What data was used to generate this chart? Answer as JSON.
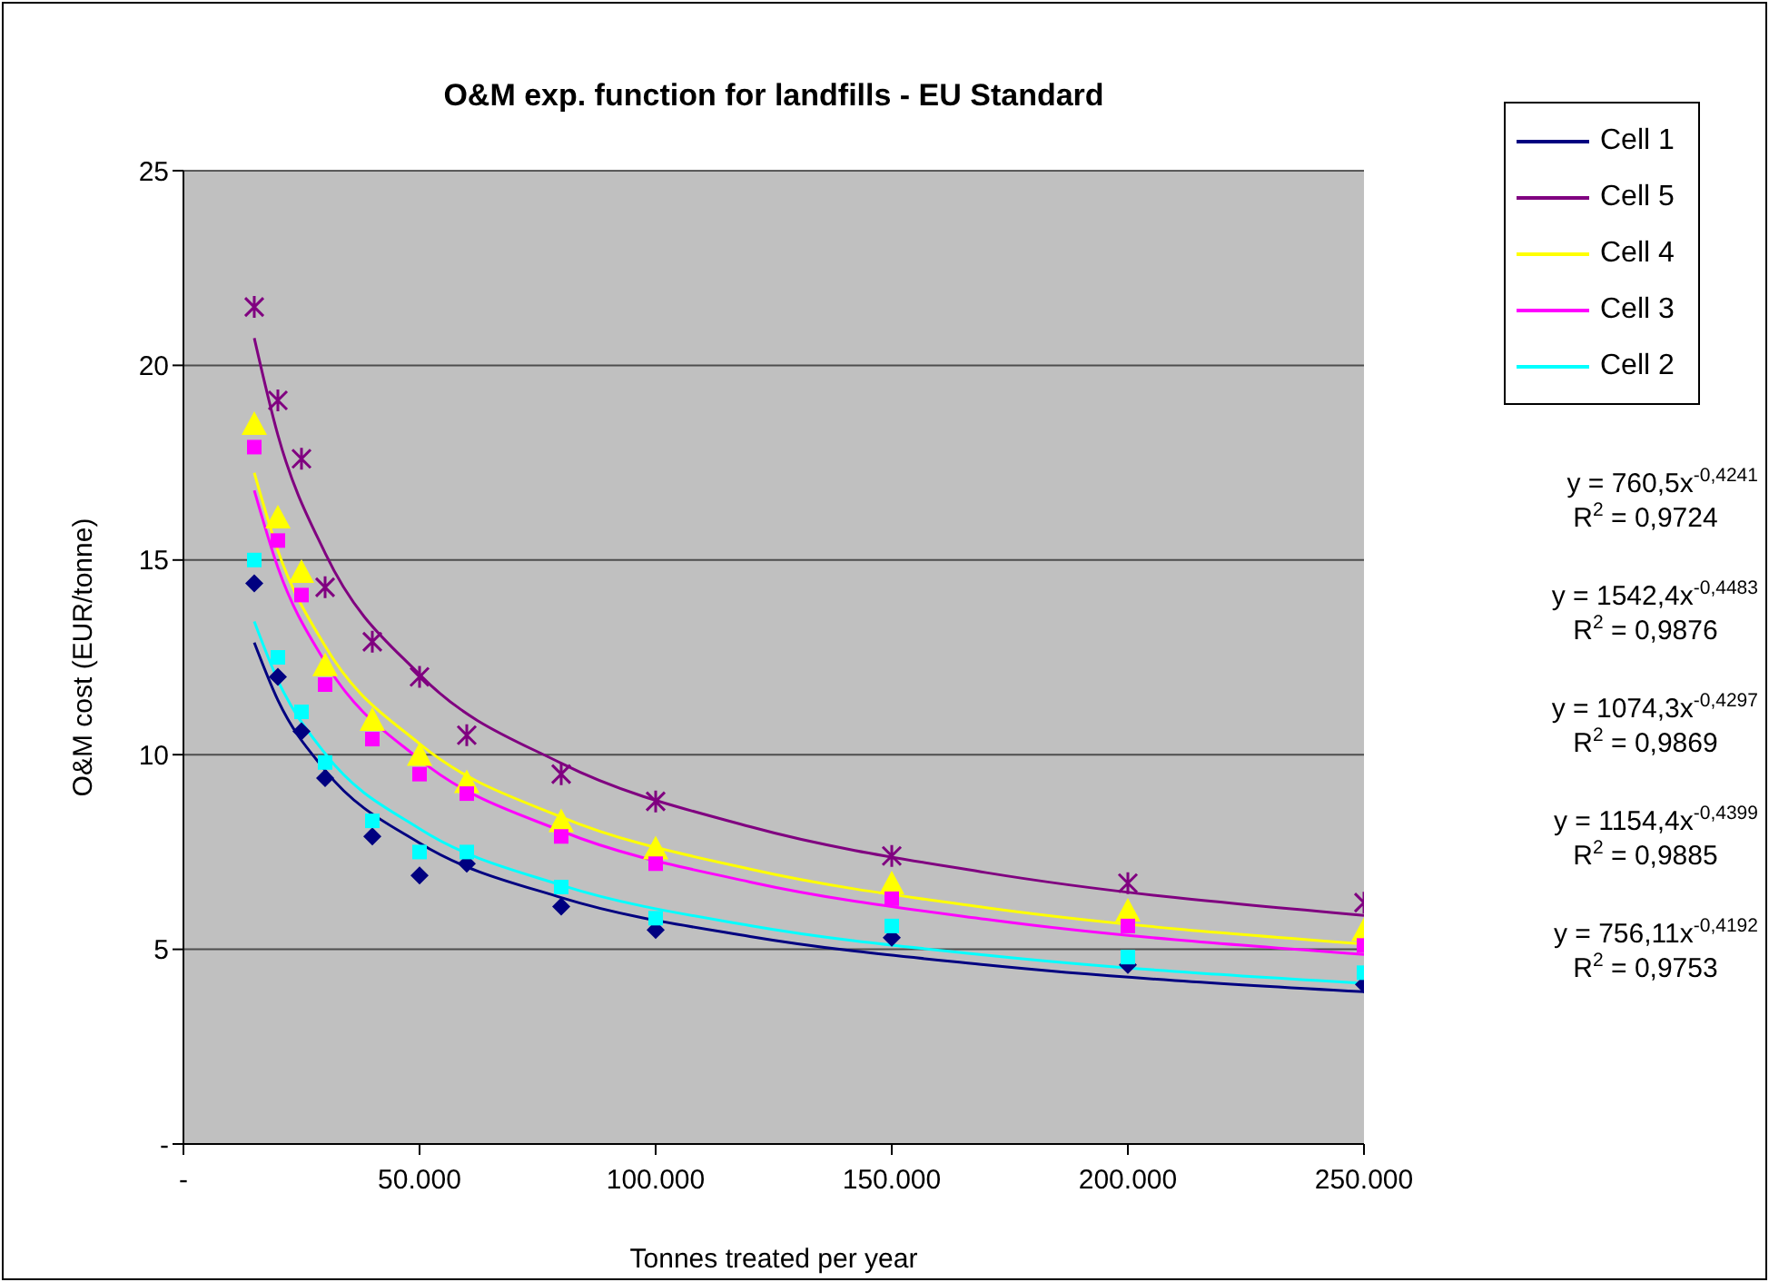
{
  "chart_data": {
    "type": "scatter",
    "title": "O&M exp. function for landfills - EU Standard",
    "xlabel": "Tonnes treated per year",
    "ylabel": "O&M cost (EUR/tonne)",
    "xlim": [
      0,
      250000
    ],
    "xticks": [
      {
        "value": 0,
        "label": "-"
      },
      {
        "value": 50000,
        "label": "50.000"
      },
      {
        "value": 100000,
        "label": "100.000"
      },
      {
        "value": 150000,
        "label": "150.000"
      },
      {
        "value": 200000,
        "label": "200.000"
      },
      {
        "value": 250000,
        "label": "250.000"
      }
    ],
    "ylim": [
      0,
      25
    ],
    "yticks": [
      {
        "value": 0,
        "label": "-"
      },
      5,
      10,
      15,
      20,
      25
    ],
    "grid": "y",
    "legend": "top right",
    "series": [
      {
        "type": "line",
        "name": "Cell 1",
        "color": "#000080",
        "marker": "none",
        "x": [
          15000,
          20000,
          30000,
          50000,
          80000,
          120000,
          170000,
          250000
        ],
        "values": [
          12.88,
          11.4,
          9.6,
          7.73,
          6.33,
          5.33,
          4.6,
          3.91
        ]
      },
      {
        "type": "line",
        "name": "Cell 5",
        "color": "#800080",
        "marker": "none",
        "x": [
          15000,
          20000,
          30000,
          50000,
          80000,
          120000,
          170000,
          250000
        ],
        "values": [
          20.7,
          18.21,
          15.18,
          12.06,
          9.78,
          8.15,
          6.97,
          5.87
        ]
      },
      {
        "type": "line",
        "name": "Cell 4",
        "color": "#ffff00",
        "marker": "none",
        "x": [
          15000,
          20000,
          30000,
          50000,
          80000,
          120000,
          170000,
          250000
        ],
        "values": [
          17.24,
          15.24,
          12.79,
          10.28,
          8.4,
          7.06,
          6.07,
          5.14
        ]
      },
      {
        "type": "line",
        "name": "Cell 3",
        "color": "#ff00ff",
        "marker": "none",
        "x": [
          15000,
          20000,
          30000,
          50000,
          80000,
          120000,
          170000,
          250000
        ],
        "values": [
          16.79,
          14.81,
          12.38,
          9.88,
          8.04,
          6.73,
          5.77,
          4.87
        ]
      },
      {
        "type": "line",
        "name": "Cell 2",
        "color": "#00ffff",
        "marker": "none",
        "x": [
          15000,
          20000,
          30000,
          50000,
          80000,
          120000,
          170000,
          250000
        ],
        "values": [
          13.42,
          11.91,
          10.03,
          8.1,
          6.65,
          5.61,
          4.85,
          4.13
        ]
      },
      {
        "color": "#000080",
        "marker": "diamond",
        "x": [
          15000,
          20000,
          25000,
          30000,
          40000,
          50000,
          60000,
          80000,
          100000,
          150000,
          200000,
          250000
        ],
        "values": [
          14.4,
          12.0,
          10.6,
          9.4,
          7.9,
          6.9,
          7.2,
          6.1,
          5.5,
          5.3,
          4.6,
          4.1
        ]
      },
      {
        "color": "#800080",
        "marker": "cross",
        "x": [
          15000,
          20000,
          25000,
          30000,
          40000,
          50000,
          60000,
          80000,
          100000,
          150000,
          200000,
          250000
        ],
        "values": [
          21.5,
          19.1,
          17.6,
          14.3,
          12.9,
          12.0,
          10.5,
          9.5,
          8.8,
          7.4,
          6.7,
          6.2
        ]
      },
      {
        "color": "#ffff00",
        "marker": "triangle",
        "x": [
          15000,
          20000,
          25000,
          30000,
          40000,
          50000,
          60000,
          80000,
          100000,
          150000,
          200000,
          250000
        ],
        "values": [
          18.4,
          16.0,
          14.6,
          12.2,
          10.8,
          9.9,
          9.2,
          8.2,
          7.5,
          6.6,
          5.9,
          5.4
        ]
      },
      {
        "color": "#ff00ff",
        "marker": "square",
        "x": [
          15000,
          20000,
          25000,
          30000,
          40000,
          50000,
          60000,
          80000,
          100000,
          150000,
          200000,
          250000
        ],
        "values": [
          17.9,
          15.5,
          14.1,
          11.8,
          10.4,
          9.5,
          9.0,
          7.9,
          7.2,
          6.3,
          5.6,
          5.1
        ]
      },
      {
        "color": "#00ffff",
        "marker": "square",
        "x": [
          15000,
          20000,
          25000,
          30000,
          40000,
          50000,
          60000,
          80000,
          100000,
          150000,
          200000,
          250000
        ],
        "values": [
          15.0,
          12.5,
          11.1,
          9.8,
          8.3,
          7.5,
          7.5,
          6.6,
          5.8,
          5.6,
          4.8,
          4.4
        ]
      }
    ],
    "annotations": [
      "y = 760,5x$^{-0,4241}$",
      "R$^{2}$ = 0,9724",
      "y = 1542,4x$^{-0,4483}$",
      "R$^{2}$ = 0,9876",
      "y = 1074,3x$^{-0,4297}$",
      "R$^{2}$ = 0,9869",
      "y = 1154,4x$^{-0,4399}$",
      "R$^{2}$ = 0,9885",
      "y = 756,11x$^{-0,4192}$",
      "R$^{2}$ = 0,9753"
    ]
  }
}
